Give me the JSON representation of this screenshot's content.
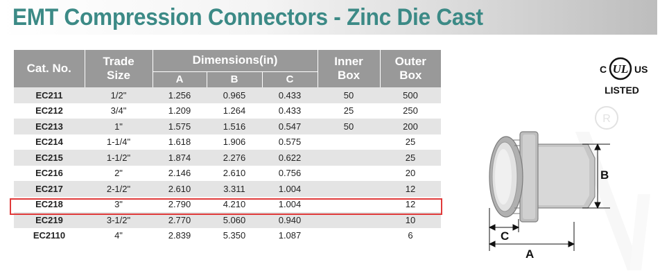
{
  "title": "EMT Compression Connectors - Zinc Die Cast",
  "table": {
    "headers": {
      "cat_no": "Cat. No.",
      "trade_size_1": "Trade",
      "trade_size_2": "Size",
      "dimensions": "Dimensions(in)",
      "a": "A",
      "b": "B",
      "c": "C",
      "inner_box_1": "Inner",
      "inner_box_2": "Box",
      "outer_box_1": "Outer",
      "outer_box_2": "Box"
    },
    "rows": [
      {
        "cat": "EC211",
        "size": "1/2\"",
        "a": "1.256",
        "b": "0.965",
        "c": "0.433",
        "inner": "50",
        "outer": "500"
      },
      {
        "cat": "EC212",
        "size": "3/4\"",
        "a": "1.209",
        "b": "1.264",
        "c": "0.433",
        "inner": "25",
        "outer": "250"
      },
      {
        "cat": "EC213",
        "size": "1\"",
        "a": "1.575",
        "b": "1.516",
        "c": "0.547",
        "inner": "50",
        "outer": "200"
      },
      {
        "cat": "EC214",
        "size": "1-1/4\"",
        "a": "1.618",
        "b": "1.906",
        "c": "0.575",
        "inner": "",
        "outer": "25"
      },
      {
        "cat": "EC215",
        "size": "1-1/2\"",
        "a": "1.874",
        "b": "2.276",
        "c": "0.622",
        "inner": "",
        "outer": "25"
      },
      {
        "cat": "EC216",
        "size": "2\"",
        "a": "2.146",
        "b": "2.610",
        "c": "0.756",
        "inner": "",
        "outer": "20"
      },
      {
        "cat": "EC217",
        "size": "2-1/2\"",
        "a": "2.610",
        "b": "3.311",
        "c": "1.004",
        "inner": "",
        "outer": "12"
      },
      {
        "cat": "EC218",
        "size": "3\"",
        "a": "2.790",
        "b": "4.210",
        "c": "1.004",
        "inner": "",
        "outer": "12"
      },
      {
        "cat": "EC219",
        "size": "3-1/2\"",
        "a": "2.770",
        "b": "5.060",
        "c": "0.940",
        "inner": "",
        "outer": "10"
      },
      {
        "cat": "EC2110",
        "size": "4\"",
        "a": "2.839",
        "b": "5.350",
        "c": "1.087",
        "inner": "",
        "outer": "6"
      }
    ]
  },
  "certification": {
    "c_label": "C",
    "ul_label": "UL",
    "us_label": "US",
    "listed_label": "LISTED",
    "reg_mark": "R"
  },
  "diagram": {
    "label_a": "A",
    "label_b": "B",
    "label_c": "C"
  },
  "colors": {
    "title": "#3c8a86",
    "header_bg": "#999999",
    "row_shade": "#e4e4e4",
    "highlight": "#e03a3a"
  }
}
